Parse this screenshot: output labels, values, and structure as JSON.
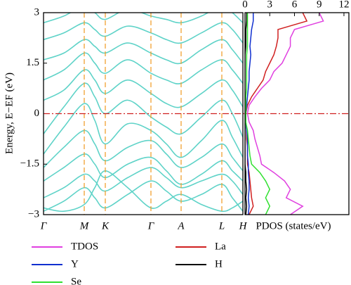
{
  "chart_data": [
    {
      "type": "line",
      "color": "#5fd3c8",
      "ylabel": "Energy, E−EF (eV)",
      "x": [
        0,
        0.29,
        0.58,
        0.73,
        0.88,
        1.2,
        1.53,
        1.75,
        1.96,
        2.25,
        2.54,
        2.69,
        2.84
      ],
      "xlim": [
        0,
        2.84
      ],
      "xticks": [
        {
          "value": 0,
          "label": "Γ"
        },
        {
          "value": 0.58,
          "label": "M"
        },
        {
          "value": 0.88,
          "label": "K"
        },
        {
          "value": 1.53,
          "label": "Γ"
        },
        {
          "value": 1.96,
          "label": "A"
        },
        {
          "value": 2.54,
          "label": "L"
        },
        {
          "value": 2.84,
          "label": "H"
        }
      ],
      "ylim": [
        -3,
        3
      ],
      "yticks": [
        {
          "value": -3,
          "label": "−3"
        },
        {
          "value": -1.5,
          "label": "−1.5"
        },
        0,
        1.5,
        3
      ],
      "symmetry_line_color": "#f0a030",
      "fermi_line_color": "#d02020",
      "series": [
        {
          "values": [
            -2.9,
            -2.6,
            -2.2,
            -2.5,
            -2.8,
            -2.4,
            -2.0,
            -2.3,
            -2.6,
            -2.4,
            -2.1,
            -2.5,
            -2.9
          ]
        },
        {
          "values": [
            -2.5,
            -2.2,
            -1.8,
            -2.0,
            -2.3,
            -1.9,
            -1.6,
            -1.9,
            -2.2,
            -2.0,
            -1.8,
            -2.0,
            -2.4
          ]
        },
        {
          "values": [
            -2.0,
            -1.6,
            -1.2,
            -1.5,
            -1.9,
            -1.5,
            -1.3,
            -1.7,
            -2.1,
            -1.8,
            -1.4,
            -1.7,
            -2.0
          ]
        },
        {
          "values": [
            -1.6,
            -1.0,
            -0.5,
            -0.9,
            -1.4,
            -1.0,
            -0.8,
            -1.2,
            -1.6,
            -1.3,
            -0.9,
            -1.3,
            -1.7
          ]
        },
        {
          "values": [
            -1.2,
            -0.4,
            0.3,
            -0.2,
            -0.9,
            -0.3,
            -0.5,
            -0.9,
            -1.3,
            -0.8,
            -0.2,
            -0.7,
            -1.3
          ]
        },
        {
          "values": [
            -0.6,
            0.2,
            0.9,
            0.5,
            0.0,
            0.4,
            -0.1,
            -0.4,
            -0.6,
            -0.1,
            0.4,
            0.0,
            -0.7
          ]
        },
        {
          "values": [
            0.4,
            0.7,
            1.3,
            1.0,
            0.6,
            1.0,
            0.6,
            0.3,
            0.2,
            0.6,
            1.0,
            0.7,
            0.2
          ]
        },
        {
          "values": [
            1.0,
            1.3,
            1.8,
            1.5,
            1.2,
            1.6,
            1.2,
            1.0,
            0.9,
            1.3,
            1.6,
            1.3,
            0.9
          ]
        },
        {
          "values": [
            1.6,
            1.8,
            2.2,
            2.0,
            1.8,
            2.1,
            1.8,
            1.6,
            1.5,
            1.9,
            2.2,
            1.9,
            1.5
          ]
        },
        {
          "values": [
            2.2,
            2.4,
            2.7,
            2.5,
            2.3,
            2.6,
            2.4,
            2.2,
            2.1,
            2.4,
            2.7,
            2.5,
            2.1
          ]
        },
        {
          "values": [
            2.7,
            2.9,
            3.2,
            3.0,
            2.8,
            3.1,
            2.9,
            2.8,
            2.7,
            2.9,
            3.2,
            3.0,
            2.7
          ]
        },
        {
          "values": [
            -2.8,
            -2.9,
            -2.7,
            -2.2,
            -1.7,
            -2.2,
            -2.8,
            -2.6,
            -2.4,
            -2.7,
            -2.9,
            -2.8,
            -2.6
          ]
        }
      ]
    },
    {
      "type": "line",
      "orientation": "horizontal",
      "xlabel": "PDOS (states/eV)",
      "xlim": [
        0,
        12.6
      ],
      "xticks": [
        0,
        3,
        6,
        9,
        12
      ],
      "ylim": [
        -3,
        3
      ],
      "y": [
        -3,
        -2.75,
        -2.5,
        -2.25,
        -2,
        -1.75,
        -1.5,
        -1.25,
        -1,
        -0.75,
        -0.5,
        -0.25,
        0,
        0.25,
        0.5,
        0.75,
        1,
        1.25,
        1.5,
        1.75,
        2,
        2.25,
        2.5,
        2.75,
        3
      ],
      "legend": "bottom",
      "series": [
        {
          "name": "TDOS",
          "color": "#e040e0",
          "values": [
            5.5,
            7.0,
            5.0,
            5.5,
            4.8,
            3.5,
            2.0,
            1.8,
            1.5,
            1.2,
            1.0,
            0.5,
            0.3,
            0.5,
            1.2,
            2.0,
            3.0,
            3.5,
            4.5,
            5.0,
            5.5,
            5.5,
            6.0,
            9.5,
            9.0
          ]
        },
        {
          "name": "La",
          "color": "#d02020",
          "values": [
            0.5,
            1.0,
            0.8,
            0.7,
            0.6,
            0.5,
            0.3,
            0.3,
            0.3,
            0.2,
            0.2,
            0.1,
            0.1,
            0.3,
            0.8,
            1.5,
            2.2,
            2.5,
            3.0,
            3.5,
            3.8,
            4.0,
            4.0,
            7.5,
            7.0
          ]
        },
        {
          "name": "Y",
          "color": "#1030d0",
          "values": [
            0.4,
            0.5,
            0.4,
            0.5,
            0.5,
            0.4,
            0.4,
            0.3,
            0.3,
            0.3,
            0.2,
            0.1,
            0.1,
            0.2,
            0.3,
            0.4,
            0.5,
            0.5,
            0.6,
            0.7,
            0.6,
            0.7,
            0.8,
            1.0,
            1.0
          ]
        },
        {
          "name": "H",
          "color": "#000000",
          "values": [
            0.1,
            0.2,
            0.1,
            0.2,
            0.1,
            0.1,
            0.0,
            0.0,
            0.0,
            0.0,
            0.0,
            0.0,
            0.0,
            0.0,
            0.0,
            0.0,
            0.0,
            0.0,
            0.0,
            0.0,
            0.1,
            0.1,
            0.1,
            0.2,
            0.2
          ]
        },
        {
          "name": "Se",
          "color": "#30e030",
          "values": [
            2.5,
            3.0,
            2.5,
            3.0,
            2.5,
            1.8,
            0.8,
            0.6,
            0.5,
            0.4,
            0.3,
            0.1,
            0.1,
            0.1,
            0.1,
            0.2,
            0.2,
            0.2,
            0.2,
            0.2,
            0.3,
            0.3,
            0.3,
            0.3,
            0.3
          ]
        }
      ]
    }
  ]
}
